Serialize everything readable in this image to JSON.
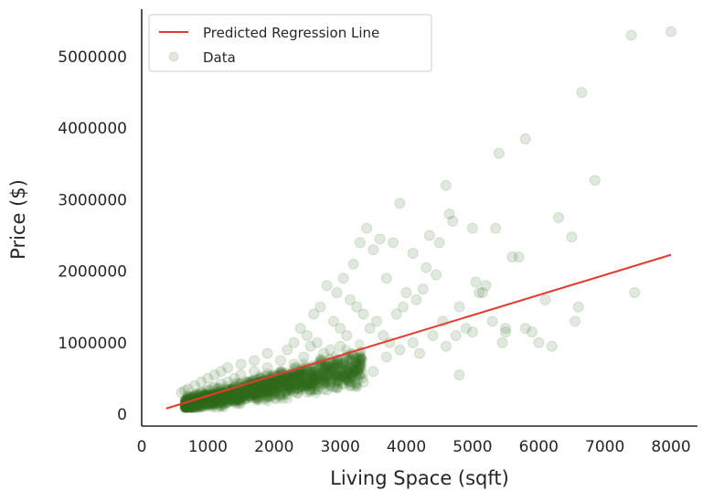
{
  "chart_data": {
    "type": "scatter",
    "xlabel": "Living Space (sqft)",
    "ylabel": "Price ($)",
    "xlim": [
      0,
      8400
    ],
    "ylim": [
      -150000,
      5600000
    ],
    "x_ticks": [
      0,
      1000,
      2000,
      3000,
      4000,
      5000,
      6000,
      7000,
      8000
    ],
    "x_tick_labels": [
      "0",
      "1000",
      "2000",
      "3000",
      "4000",
      "5000",
      "6000",
      "7000",
      "8000"
    ],
    "y_ticks": [
      0,
      1000000,
      2000000,
      3000000,
      4000000,
      5000000
    ],
    "y_tick_labels": [
      "0",
      "1000000",
      "2000000",
      "3000000",
      "4000000",
      "5000000"
    ],
    "grid": false,
    "legend": {
      "placement": "top-left",
      "entries": [
        "Predicted Regression Line",
        "Data"
      ]
    },
    "colors": {
      "line": "#e8392b",
      "points": "#2e6b1a"
    },
    "point_alpha": 0.15,
    "series": [
      {
        "name": "Predicted Regression Line",
        "kind": "line",
        "x": [
          370,
          8000
        ],
        "y": [
          80000,
          2230000
        ]
      },
      {
        "name": "Data",
        "kind": "scatter",
        "x": [
          7400,
          8000,
          6650,
          5800,
          5400,
          6850,
          3900,
          4600,
          4650,
          5350,
          4350,
          6300,
          5000,
          5600,
          3400,
          6500,
          7450,
          6600,
          6550,
          5100,
          4800,
          4900,
          5900,
          5450,
          3600,
          3300,
          3500,
          4100,
          4300,
          4500,
          4700,
          5200,
          5700,
          6000,
          3800,
          3200,
          3700,
          4450,
          5050,
          5150,
          4000,
          4150,
          4250,
          3950,
          3850,
          4550,
          4750,
          5300,
          5500,
          6100,
          2800,
          2950,
          3050,
          3150,
          3250,
          3350,
          3450,
          3550,
          3650,
          3750,
          2600,
          2700,
          2900,
          3000,
          3100,
          2400,
          2500,
          2650,
          2850,
          3000,
          2300,
          2550,
          2750,
          3100,
          3300,
          2200,
          2450,
          2700,
          2900,
          3200,
          1900,
          2100,
          2300,
          2500,
          2700,
          1700,
          1900,
          2100,
          2400,
          2600,
          1500,
          1700,
          2000,
          2200,
          2500,
          1300,
          1500,
          1800,
          2000,
          2300,
          1200,
          1400,
          1600,
          1900,
          2100,
          1100,
          1300,
          1500,
          1700,
          1900,
          1000,
          1200,
          1400,
          1600,
          1800,
          900,
          1100,
          1300,
          1500,
          1700,
          800,
          1000,
          1200,
          1400,
          1600,
          700,
          900,
          1100,
          1300,
          1500,
          650,
          850,
          1050,
          1250,
          1450,
          600,
          800,
          1000,
          1200,
          1400,
          2000,
          2200,
          2400,
          2600,
          2800,
          1800,
          2000,
          2300,
          2600,
          2900,
          1600,
          1900,
          2200,
          2500,
          2800,
          3000,
          3100,
          3300,
          3500,
          3700,
          3900,
          4100,
          4200,
          4400,
          4600,
          4800,
          5000,
          5500,
          5800,
          6200,
          700,
          850,
          950,
          1150,
          1350,
          1550,
          1750,
          1950,
          2150,
          2350,
          2550,
          2750,
          2950,
          3150,
          3350,
          1000,
          1100,
          1200,
          1300,
          1400
        ],
        "y": [
          5300000,
          5350000,
          4500000,
          3850000,
          3650000,
          3270000,
          2950000,
          3200000,
          2800000,
          2600000,
          2500000,
          2750000,
          2600000,
          2200000,
          2600000,
          2480000,
          1700000,
          1500000,
          1300000,
          1700000,
          1500000,
          1200000,
          1150000,
          1000000,
          2450000,
          2400000,
          2300000,
          2250000,
          2050000,
          2400000,
          2700000,
          1800000,
          2200000,
          1000000,
          2400000,
          2100000,
          1900000,
          1950000,
          1850000,
          1700000,
          1700000,
          1600000,
          1750000,
          1500000,
          1400000,
          1300000,
          1100000,
          1300000,
          1200000,
          1600000,
          1800000,
          1700000,
          1900000,
          1600000,
          1500000,
          1400000,
          1200000,
          1300000,
          1100000,
          1000000,
          1400000,
          1500000,
          1300000,
          1200000,
          1100000,
          1200000,
          1100000,
          1000000,
          900000,
          950000,
          1000000,
          950000,
          850000,
          800000,
          750000,
          900000,
          800000,
          750000,
          650000,
          600000,
          850000,
          750000,
          700000,
          650000,
          550000,
          750000,
          650000,
          600000,
          550000,
          500000,
          700000,
          600000,
          550000,
          500000,
          450000,
          650000,
          550000,
          500000,
          450000,
          400000,
          600000,
          500000,
          450000,
          400000,
          380000,
          550000,
          450000,
          420000,
          380000,
          350000,
          500000,
          420000,
          380000,
          340000,
          320000,
          450000,
          380000,
          340000,
          310000,
          290000,
          400000,
          340000,
          300000,
          280000,
          260000,
          350000,
          300000,
          270000,
          250000,
          230000,
          330000,
          280000,
          250000,
          230000,
          210000,
          300000,
          260000,
          230000,
          210000,
          200000,
          300000,
          350000,
          380000,
          420000,
          450000,
          250000,
          280000,
          320000,
          350000,
          380000,
          220000,
          250000,
          280000,
          310000,
          340000,
          600000,
          500000,
          700000,
          600000,
          800000,
          900000,
          1000000,
          850000,
          1100000,
          950000,
          550000,
          1150000,
          1150000,
          1200000,
          950000,
          200000,
          170000,
          150000,
          180000,
          200000,
          210000,
          230000,
          250000,
          280000,
          300000,
          320000,
          350000,
          380000,
          400000,
          450000,
          150000,
          140000,
          160000,
          170000,
          180000
        ]
      }
    ]
  }
}
